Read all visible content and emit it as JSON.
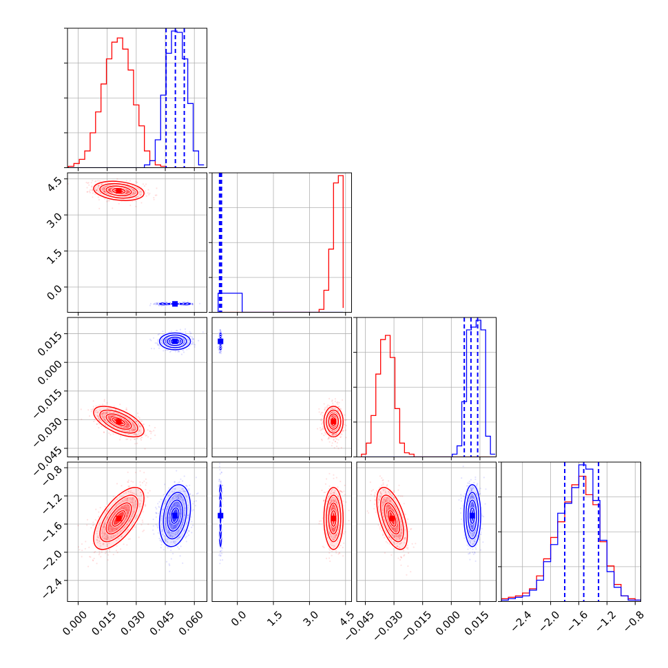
{
  "chart_data": {
    "type": "corner",
    "colors": {
      "red": "#ff0000",
      "blue": "#0000ff"
    },
    "grid": true,
    "parameters": [
      {
        "range": [
          -0.0055,
          0.0665
        ],
        "ticks": [
          0.0,
          0.015,
          0.03,
          0.045,
          0.06
        ],
        "tick_labels": [
          "0.000",
          "0.015",
          "0.030",
          "0.045",
          "0.060"
        ]
      },
      {
        "range": [
          -1.05,
          4.75
        ],
        "ticks": [
          0.0,
          1.5,
          3.0,
          4.5
        ],
        "tick_labels": [
          "0.0",
          "1.5",
          "3.0",
          "4.5"
        ]
      },
      {
        "range": [
          -0.0495,
          0.0235
        ],
        "ticks": [
          -0.045,
          -0.03,
          -0.015,
          0.0,
          0.015
        ],
        "tick_labels": [
          "−0.045",
          "−0.030",
          "−0.015",
          "0.000",
          "0.015"
        ]
      },
      {
        "range": [
          -2.7,
          -0.72
        ],
        "ticks": [
          -2.4,
          -2.0,
          -1.6,
          -1.2,
          -0.8
        ],
        "tick_labels": [
          "−2.4",
          "−2.0",
          "−1.6",
          "−1.2",
          "−0.8"
        ]
      }
    ],
    "series": [
      {
        "color": "red",
        "mean": [
          0.021,
          4.0,
          -0.031,
          -1.52
        ],
        "sigma": [
          0.0065,
          0.2,
          0.004,
          0.22
        ],
        "corr": {
          "0-1": -0.25,
          "0-2": -0.6,
          "0-3": 0.65,
          "1-2": 0.0,
          "1-3": 0.0,
          "2-3": -0.55
        }
      },
      {
        "color": "blue",
        "mean": [
          0.05,
          -0.7,
          0.011,
          -1.48
        ],
        "sigma": [
          0.004,
          0.03,
          0.0022,
          0.22
        ],
        "corr": {
          "0-1": 0.0,
          "0-2": 0.0,
          "0-3": 0.25,
          "1-2": 0.0,
          "1-3": 0.0,
          "2-3": 0.0
        }
      }
    ],
    "histograms": [
      {
        "bins": [
          -0.005,
          -0.0022,
          0.0006,
          0.0034,
          0.0062,
          0.009,
          0.0118,
          0.0146,
          0.0174,
          0.0202,
          0.023,
          0.0258,
          0.0286,
          0.0314,
          0.0342,
          0.037,
          0.0398,
          0.0426,
          0.0454,
          0.0482,
          0.051,
          0.0538,
          0.0566,
          0.0594,
          0.0622,
          0.065
        ],
        "red": [
          0.01,
          0.03,
          0.06,
          0.12,
          0.25,
          0.4,
          0.6,
          0.78,
          0.9,
          0.93,
          0.85,
          0.7,
          0.45,
          0.3,
          0.12,
          0.05,
          0.02,
          0.01,
          0,
          0,
          0,
          0,
          0,
          0,
          0
        ],
        "blue": [
          0,
          0,
          0,
          0,
          0,
          0,
          0,
          0,
          0,
          0,
          0,
          0,
          0,
          0,
          0.02,
          0.05,
          0.2,
          0.52,
          0.82,
          0.98,
          0.97,
          0.78,
          0.46,
          0.12,
          0.02
        ],
        "quantile_lines": [
          0.0454,
          0.0502,
          0.0548
        ]
      },
      {
        "bins": [
          -0.8,
          -0.6,
          -0.4,
          -0.2,
          0.0,
          0.2,
          0.4,
          0.6,
          0.8,
          1.0,
          1.2,
          1.4,
          1.6,
          1.8,
          2.0,
          2.2,
          2.4,
          2.6,
          2.8,
          3.0,
          3.2,
          3.4,
          3.6,
          3.8,
          4.0,
          4.2,
          4.4
        ],
        "red": [
          0,
          0,
          0,
          0,
          0,
          0,
          0,
          0,
          0,
          0,
          0,
          0,
          0,
          0,
          0,
          0,
          0,
          0,
          0,
          0,
          0,
          0.02,
          0.15,
          0.43,
          0.88,
          0.93,
          0.03
        ],
        "blue": [
          0.13,
          0.13,
          0.13,
          0.13,
          0.13,
          0,
          0,
          0,
          0,
          0,
          0,
          0,
          0,
          0,
          0,
          0,
          0,
          0,
          0,
          0,
          0,
          0,
          0,
          0,
          0,
          0,
          0
        ],
        "quantile_lines": [
          -0.74,
          -0.71,
          -0.69,
          -0.66
        ]
      },
      {
        "bins": [
          -0.047,
          -0.0445,
          -0.042,
          -0.0395,
          -0.037,
          -0.0345,
          -0.032,
          -0.0295,
          -0.027,
          -0.0245,
          -0.022,
          -0.0195,
          -0.017,
          -0.0145,
          -0.012,
          -0.0095,
          -0.007,
          -0.0045,
          -0.002,
          0.0005,
          0.003,
          0.0055,
          0.008,
          0.0105,
          0.013,
          0.0155,
          0.018,
          0.0205,
          0.023
        ],
        "red": [
          0.02,
          0.1,
          0.3,
          0.6,
          0.85,
          0.88,
          0.72,
          0.35,
          0.1,
          0.03,
          0.02,
          0,
          0,
          0,
          0,
          0,
          0,
          0,
          0,
          0,
          0,
          0,
          0,
          0,
          0,
          0,
          0,
          0
        ],
        "blue": [
          0,
          0,
          0,
          0,
          0,
          0,
          0,
          0,
          0,
          0,
          0,
          0,
          0,
          0,
          0,
          0,
          0,
          0,
          0,
          0.02,
          0.08,
          0.4,
          0.92,
          0.94,
          0.99,
          0.92,
          0.15,
          0.02
        ],
        "quantile_lines": [
          0.0068,
          0.0103,
          0.0138
        ]
      },
      {
        "bins": [
          -2.7,
          -2.6,
          -2.5,
          -2.4,
          -2.3,
          -2.2,
          -2.1,
          -2.0,
          -1.9,
          -1.8,
          -1.7,
          -1.6,
          -1.5,
          -1.4,
          -1.3,
          -1.2,
          -1.1,
          -1.0,
          -0.9,
          -0.8,
          -0.7
        ],
        "red": [
          0.02,
          0.03,
          0.04,
          0.06,
          0.09,
          0.18,
          0.3,
          0.45,
          0.56,
          0.7,
          0.82,
          0.88,
          0.75,
          0.68,
          0.42,
          0.25,
          0.12,
          0.04,
          0.02,
          0.01
        ],
        "blue": [
          0.01,
          0.02,
          0.03,
          0.04,
          0.08,
          0.15,
          0.28,
          0.4,
          0.62,
          0.69,
          0.8,
          0.96,
          0.93,
          0.71,
          0.43,
          0.21,
          0.1,
          0.04,
          0.01,
          0.01
        ],
        "quantile_lines": [
          -1.8,
          -1.53,
          -1.32
        ]
      }
    ]
  }
}
